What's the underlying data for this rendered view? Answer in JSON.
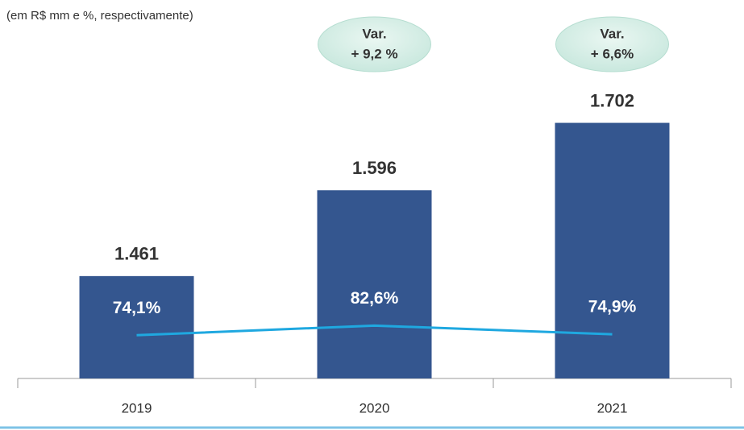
{
  "chart_data": {
    "type": "bar",
    "subtitle": "(em R$ mm e %, respectivamente)",
    "categories": [
      "2019",
      "2020",
      "2021"
    ],
    "series": [
      {
        "name": null,
        "type": "bar",
        "color": "#34568f",
        "values": [
          1461,
          1596,
          1702
        ],
        "value_labels": [
          "1.461",
          "1.596",
          "1.702"
        ]
      },
      {
        "name": null,
        "type": "line",
        "axis": "y2",
        "color": "#1fa8e0",
        "values": [
          74.1,
          82.6,
          74.9
        ],
        "value_labels": [
          "74,1%",
          "82,6%",
          "74,9%"
        ]
      }
    ],
    "ylim": [
      1300,
      1880
    ],
    "y2lim": [
      36,
      361
    ],
    "annotations": [
      [
        "Var.",
        "+ 9,2 %"
      ],
      [
        "Var.",
        "+ 6,6%"
      ]
    ],
    "annotation_categories": [
      1,
      2
    ],
    "legend": false,
    "grid": false
  }
}
